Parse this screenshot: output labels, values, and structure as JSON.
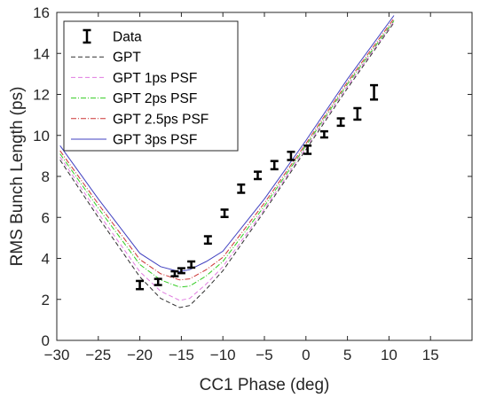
{
  "chart_data": {
    "type": "line",
    "title": "",
    "xlabel": "CC1 Phase (deg)",
    "ylabel": "RMS Bunch Length (ps)",
    "xlim": [
      -30,
      20
    ],
    "ylim": [
      0,
      16
    ],
    "xticks": [
      -30,
      -25,
      -20,
      -15,
      -10,
      -5,
      0,
      5,
      10,
      15
    ],
    "yticks": [
      0,
      2,
      4,
      6,
      8,
      10,
      12,
      14,
      16
    ],
    "grid": false,
    "legend_position": "top-left",
    "legend": [
      "Data",
      "GPT",
      "GPT 1ps PSF",
      "GPT 2ps PSF",
      "GPT 2.5ps PSF",
      "GPT 3ps PSF"
    ],
    "data_series": {
      "name": "Data",
      "color": "#000000",
      "x": [
        -20.0,
        -17.8,
        -15.8,
        -15.0,
        -13.8,
        -11.8,
        -9.8,
        -7.8,
        -5.8,
        -3.8,
        -1.8,
        0.2,
        2.2,
        4.2,
        6.2,
        8.2
      ],
      "y": [
        2.7,
        2.85,
        3.25,
        3.4,
        3.7,
        4.9,
        6.2,
        7.4,
        8.05,
        8.55,
        9.0,
        9.3,
        10.05,
        10.65,
        11.05,
        12.1
      ],
      "err": [
        0.2,
        0.15,
        0.12,
        0.12,
        0.15,
        0.18,
        0.18,
        0.2,
        0.18,
        0.2,
        0.2,
        0.2,
        0.15,
        0.18,
        0.28,
        0.35
      ]
    },
    "series": [
      {
        "name": "GPT",
        "color": "#303030",
        "dash": "5,3",
        "x": [
          -29.6,
          -25,
          -20,
          -17.5,
          -15.2,
          -14,
          -12,
          -10,
          -5,
          0,
          5,
          10.6
        ],
        "y": [
          8.8,
          6.0,
          3.1,
          2.05,
          1.6,
          1.7,
          2.5,
          3.4,
          6.3,
          9.3,
          12.3,
          15.5
        ]
      },
      {
        "name": "GPT 1ps PSF",
        "color": "#e07be0",
        "dash": "5,3",
        "x": [
          -29.6,
          -25,
          -20,
          -17.5,
          -15.2,
          -14,
          -12,
          -10,
          -5,
          0,
          5,
          10.6
        ],
        "y": [
          8.95,
          6.2,
          3.35,
          2.4,
          1.95,
          2.05,
          2.75,
          3.6,
          6.4,
          9.4,
          12.4,
          15.55
        ]
      },
      {
        "name": "GPT 2ps PSF",
        "color": "#33cc22",
        "dash": "6,2,1,2",
        "x": [
          -29.6,
          -25,
          -20,
          -17.5,
          -15.2,
          -14,
          -12,
          -10,
          -5,
          0,
          5,
          10.6
        ],
        "y": [
          9.1,
          6.45,
          3.7,
          2.95,
          2.6,
          2.65,
          3.15,
          3.85,
          6.55,
          9.5,
          12.5,
          15.6
        ]
      },
      {
        "name": "GPT 2.5ps PSF",
        "color": "#cc3333",
        "dash": "6,2,1,2",
        "x": [
          -29.6,
          -25,
          -20,
          -17.5,
          -15.2,
          -14,
          -12,
          -10,
          -5,
          0,
          5,
          10.6
        ],
        "y": [
          9.25,
          6.65,
          3.95,
          3.25,
          2.95,
          3.0,
          3.45,
          4.05,
          6.7,
          9.6,
          12.6,
          15.7
        ]
      },
      {
        "name": "GPT 3ps PSF",
        "color": "#4040c0",
        "dash": "",
        "x": [
          -29.6,
          -25,
          -20,
          -17.5,
          -15.2,
          -14,
          -12,
          -10,
          -5,
          0,
          5,
          10.6
        ],
        "y": [
          9.5,
          6.9,
          4.25,
          3.6,
          3.35,
          3.45,
          3.85,
          4.35,
          6.9,
          9.75,
          12.75,
          15.85
        ]
      }
    ]
  }
}
